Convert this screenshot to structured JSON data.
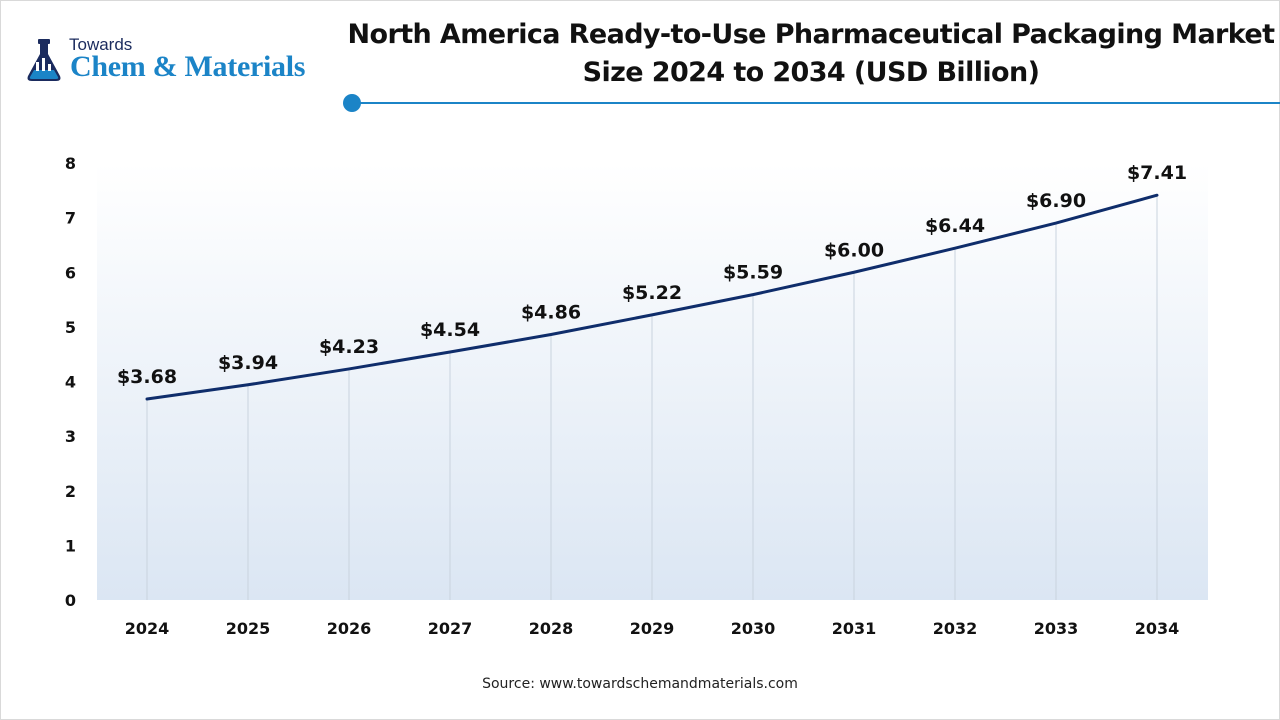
{
  "logo": {
    "top_text": "Towards",
    "main_text": "Chem & Materials",
    "icon": "flask-icon"
  },
  "header": {
    "title_line1": "North America Ready-to-Use Pharmaceutical Packaging Market",
    "title_line2": "Size 2024 to 2034 (USD Billion)"
  },
  "colors": {
    "accent": "#1b84c7",
    "line": "#0f2d6b",
    "plot_bg_top": "#ffffff",
    "plot_bg_bottom": "#dbe6f3"
  },
  "chart_data": {
    "type": "area",
    "title": "North America Ready-to-Use Pharmaceutical Packaging Market Size 2024 to 2034 (USD Billion)",
    "xlabel": "",
    "ylabel": "",
    "categories": [
      "2024",
      "2025",
      "2026",
      "2027",
      "2028",
      "2029",
      "2030",
      "2031",
      "2032",
      "2033",
      "2034"
    ],
    "values": [
      3.68,
      3.94,
      4.23,
      4.54,
      4.86,
      5.22,
      5.59,
      6.0,
      6.44,
      6.9,
      7.41
    ],
    "data_labels": [
      "$3.68",
      "$3.94",
      "$4.23",
      "$4.54",
      "$4.86",
      "$5.22",
      "$5.59",
      "$6.00",
      "$6.44",
      "$6.90",
      "$7.41"
    ],
    "y_ticks": [
      "0",
      "1",
      "2",
      "3",
      "4",
      "5",
      "6",
      "7",
      "8"
    ],
    "ylim": [
      0,
      8
    ],
    "grid": "vertical",
    "legend": "none"
  },
  "footer": {
    "source": "Source: www.towardschemandmaterials.com"
  }
}
